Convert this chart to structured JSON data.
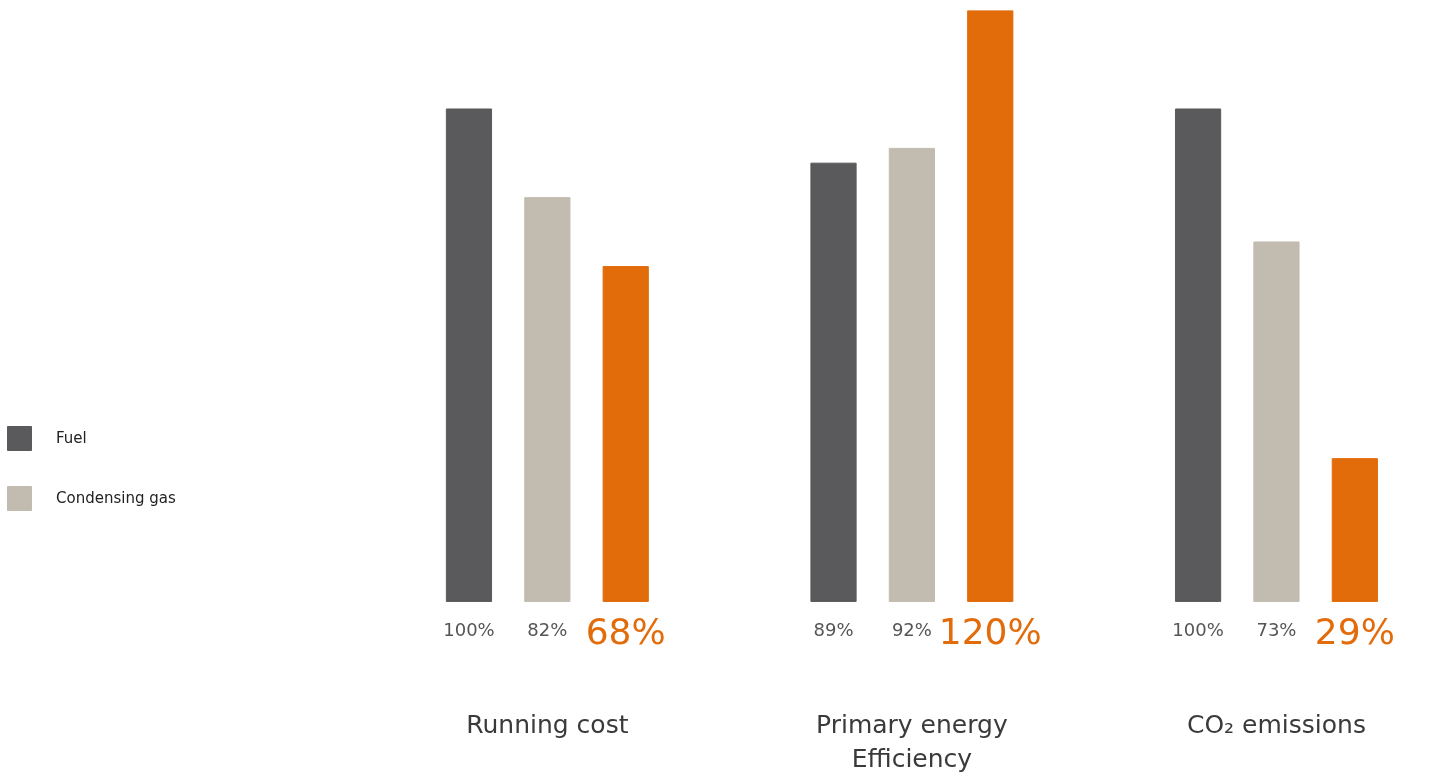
{
  "chart_data": {
    "type": "bar",
    "categories": [
      "Running cost",
      "Primary energy\nEfficiency",
      "CO₂ emissions"
    ],
    "legend": "left",
    "series": [
      {
        "name": "Fuel",
        "color": "#5a5a5c",
        "values": [
          100,
          89,
          100
        ],
        "value_labels": [
          "100%",
          "89%",
          "100%"
        ]
      },
      {
        "name": "Condensing gas",
        "color": "#c2bbb0",
        "values": [
          82,
          92,
          73
        ],
        "value_labels": [
          "82%",
          "92%",
          "73%"
        ]
      },
      {
        "color": "#e26b0a",
        "values": [
          68,
          120,
          29
        ],
        "value_labels": [
          "68%",
          "120%",
          "29%"
        ]
      }
    ]
  }
}
